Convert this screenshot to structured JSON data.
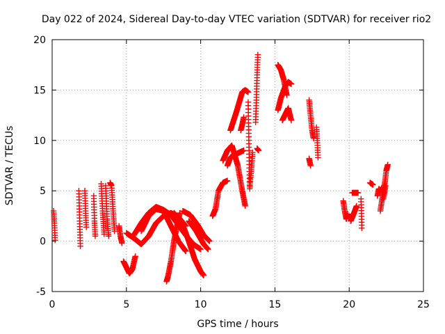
{
  "chart_data": {
    "type": "scatter",
    "title": "Day 022 of 2024, Sidereal Day-to-day VTEC variation (SDTVAR) for receiver rio2",
    "xlabel": "GPS time / hours",
    "ylabel": "SDTVAR / TECUs",
    "xlim": [
      0,
      25
    ],
    "ylim": [
      -5,
      20
    ],
    "xticks": [
      0,
      5,
      10,
      15,
      20,
      25
    ],
    "yticks": [
      -5,
      0,
      5,
      10,
      15,
      20
    ],
    "xtick_labels": [
      "0",
      "5",
      "10",
      "15",
      "20",
      "25"
    ],
    "ytick_labels": [
      "-5",
      "0",
      "5",
      "10",
      "15",
      "20"
    ],
    "grid": true,
    "legend": "none",
    "marker": "plus",
    "series": [
      {
        "name": "SDTVAR",
        "color": "#ff0000",
        "tracks": [
          {
            "t": [
              0.1,
              0.15,
              0.2
            ],
            "v": [
              3.0,
              1.8,
              0.1
            ]
          },
          {
            "t": [
              1.8,
              1.85,
              1.9
            ],
            "v": [
              5.0,
              2.0,
              -0.5
            ]
          },
          {
            "t": [
              2.2,
              2.25,
              2.3
            ],
            "v": [
              5.0,
              3.0,
              1.4
            ]
          },
          {
            "t": [
              2.8,
              2.85,
              2.9
            ],
            "v": [
              4.5,
              2.0,
              0.5
            ]
          },
          {
            "t": [
              3.3,
              3.4,
              3.5
            ],
            "v": [
              5.7,
              3.0,
              0.7
            ]
          },
          {
            "t": [
              3.6,
              3.7,
              3.8
            ],
            "v": [
              5.5,
              2.2,
              0.5
            ]
          },
          {
            "t": [
              3.9,
              4.0,
              4.1,
              4.2
            ],
            "v": [
              5.8,
              5.5,
              3.0,
              1.0
            ]
          },
          {
            "t": [
              4.5,
              4.6,
              4.7
            ],
            "v": [
              1.5,
              0.5,
              -0.2
            ]
          },
          {
            "t": [
              4.8,
              5.0,
              5.2,
              5.4,
              5.6
            ],
            "v": [
              -2.0,
              -2.6,
              -3.2,
              -2.8,
              -1.5
            ]
          },
          {
            "t": [
              5.0,
              5.5,
              6.0,
              6.5,
              7.0,
              7.5,
              8.0,
              8.5,
              9.0
            ],
            "v": [
              0.8,
              0.3,
              -0.3,
              0.5,
              1.8,
              2.5,
              2.8,
              2.4,
              1.5
            ]
          },
          {
            "t": [
              5.5,
              6.0,
              6.5,
              7.0,
              7.5,
              8.0,
              8.5,
              9.0,
              9.5,
              10.0
            ],
            "v": [
              0.6,
              1.8,
              2.8,
              3.4,
              3.1,
              2.6,
              1.6,
              0.6,
              -0.3,
              -0.8
            ]
          },
          {
            "t": [
              6.0,
              6.5,
              7.0,
              7.5,
              8.0,
              8.5,
              9.0
            ],
            "v": [
              1.0,
              2.5,
              3.2,
              3.0,
              1.5,
              0.0,
              -1.0
            ]
          },
          {
            "t": [
              7.7,
              7.8,
              8.0,
              8.2,
              8.4,
              8.6
            ],
            "v": [
              -4.0,
              -3.5,
              -2.0,
              0.0,
              1.5,
              2.8
            ]
          },
          {
            "t": [
              8.2,
              8.7,
              9.2,
              9.6,
              10.0,
              10.2
            ],
            "v": [
              2.8,
              2.0,
              0.0,
              -1.8,
              -3.0,
              -3.4
            ]
          },
          {
            "t": [
              8.8,
              9.3,
              9.8,
              10.2,
              10.6
            ],
            "v": [
              3.0,
              2.6,
              1.6,
              0.6,
              0.0
            ]
          },
          {
            "t": [
              9.2,
              9.7,
              10.2,
              10.5
            ],
            "v": [
              2.0,
              1.0,
              -0.3,
              -0.8
            ]
          },
          {
            "t": [
              10.8,
              11.0,
              11.2,
              11.5,
              11.8
            ],
            "v": [
              2.5,
              3.2,
              5.0,
              5.8,
              6.0
            ]
          },
          {
            "t": [
              11.8,
              12.0,
              12.3,
              12.6,
              12.9
            ],
            "v": [
              7.5,
              8.3,
              8.6,
              8.8,
              9.0
            ]
          },
          {
            "t": [
              11.5,
              11.8,
              12.1,
              12.5,
              12.8,
              13.0
            ],
            "v": [
              8.0,
              9.0,
              9.5,
              7.5,
              5.0,
              3.5
            ]
          },
          {
            "t": [
              12.0,
              12.4,
              12.8,
              13.0,
              13.2
            ],
            "v": [
              11.0,
              12.8,
              14.8,
              15.0,
              14.8
            ]
          },
          {
            "t": [
              12.7,
              12.8,
              12.9
            ],
            "v": [
              11.0,
              11.6,
              12.3
            ]
          },
          {
            "t": [
              13.2,
              13.3,
              13.5
            ],
            "v": [
              13.8,
              5.2,
              8.8
            ]
          },
          {
            "t": [
              13.7,
              13.75,
              13.8,
              13.85
            ],
            "v": [
              11.8,
              14.0,
              16.5,
              18.5
            ]
          },
          {
            "t": [
              13.8,
              13.9
            ],
            "v": [
              9.2,
              9.0
            ]
          },
          {
            "t": [
              15.2,
              15.4,
              15.6,
              15.7,
              15.8
            ],
            "v": [
              17.5,
              17.0,
              16.0,
              15.2,
              14.5
            ]
          },
          {
            "t": [
              15.2,
              15.4,
              15.7,
              15.9,
              16.1
            ],
            "v": [
              13.0,
              14.2,
              15.4,
              15.8,
              15.6
            ]
          },
          {
            "t": [
              15.5,
              15.7,
              15.9,
              16.1
            ],
            "v": [
              12.0,
              12.6,
              13.2,
              12.0
            ]
          },
          {
            "t": [
              17.3,
              17.4,
              17.5,
              17.6
            ],
            "v": [
              14.0,
              12.5,
              11.0,
              10.2
            ]
          },
          {
            "t": [
              17.3,
              17.4
            ],
            "v": [
              8.2,
              7.5
            ]
          },
          {
            "t": [
              17.8,
              17.85,
              17.9
            ],
            "v": [
              11.3,
              10.0,
              8.3
            ]
          },
          {
            "t": [
              19.6,
              19.7,
              19.8,
              19.9
            ],
            "v": [
              4.0,
              3.0,
              2.2,
              2.7
            ]
          },
          {
            "t": [
              20.1,
              20.3,
              20.5
            ],
            "v": [
              2.0,
              2.7,
              3.5
            ]
          },
          {
            "t": [
              20.2,
              20.4,
              20.6
            ],
            "v": [
              4.8,
              4.8,
              4.8
            ]
          },
          {
            "t": [
              20.8,
              20.85
            ],
            "v": [
              4.2,
              1.3
            ]
          },
          {
            "t": [
              21.4,
              21.6
            ],
            "v": [
              5.8,
              5.6
            ]
          },
          {
            "t": [
              21.9,
              22.0,
              22.1,
              22.2
            ],
            "v": [
              4.5,
              5.2,
              5.0,
              5.3
            ]
          },
          {
            "t": [
              22.1,
              22.25,
              22.4,
              22.5,
              22.6
            ],
            "v": [
              3.0,
              4.5,
              5.8,
              7.0,
              7.6
            ]
          },
          {
            "t": [
              22.3,
              22.45
            ],
            "v": [
              4.2,
              5.5
            ]
          }
        ]
      }
    ]
  }
}
